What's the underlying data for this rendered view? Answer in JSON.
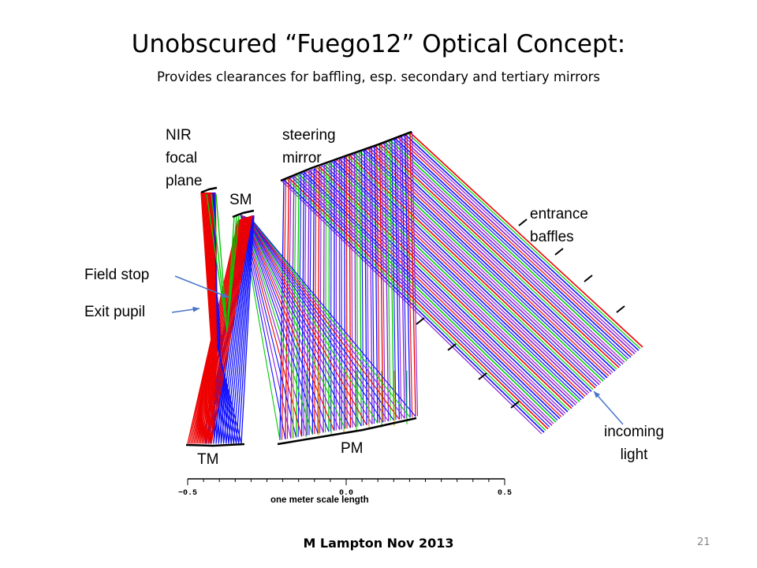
{
  "slide": {
    "title": "Unobscured “Fuego12” Optical Concept:",
    "subtitle": "Provides  clearances for baffling, esp. secondary and tertiary mirrors",
    "footer": "M Lampton Nov 2013",
    "page_number": "21"
  },
  "labels": {
    "nir_focal_plane": [
      "NIR",
      "focal",
      "plane"
    ],
    "steering_mirror": [
      "steering",
      "mirror"
    ],
    "sm": "SM",
    "entrance_baffles": [
      "entrance",
      "baffles"
    ],
    "field_stop": "Field stop",
    "exit_pupil": "Exit pupil",
    "incoming_light": [
      "incoming",
      "light"
    ],
    "tm": "TM",
    "pm": "PM"
  },
  "scale": {
    "ticks": [
      "−0.5",
      "0.0",
      "0.5"
    ],
    "caption": "one meter scale length"
  },
  "colors": {
    "ray_red": "#ee0000",
    "ray_blue": "#1010ff",
    "ray_green": "#00cc00",
    "ray_purple": "#8a1fd6",
    "annotation_arrow": "#4a74c9"
  }
}
